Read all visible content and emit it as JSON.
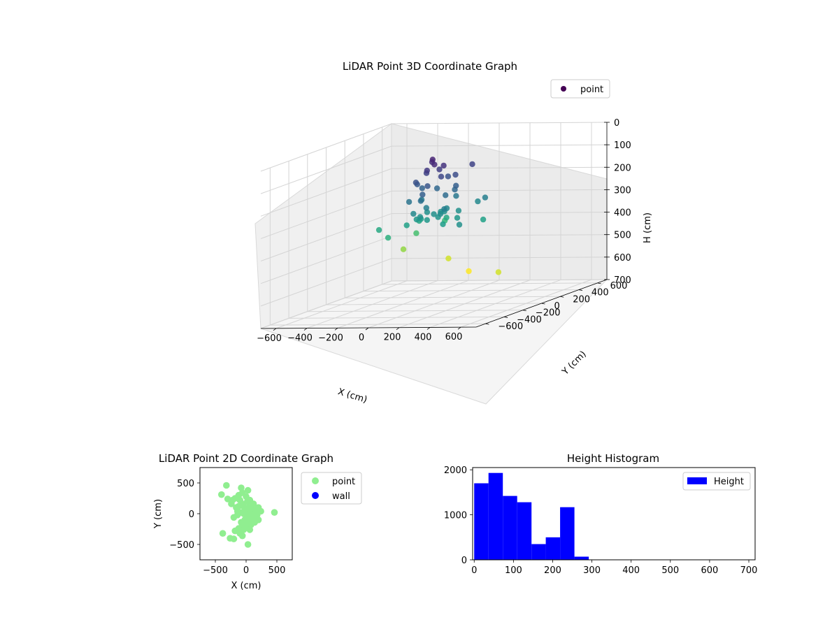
{
  "chart_data": [
    {
      "type": "scatter",
      "projection": "3d",
      "title": "LiDAR Point 3D Coordinate Graph",
      "xlabel": "X (cm)",
      "ylabel": "Y (cm)",
      "zlabel": "H (cm)",
      "xlim": [
        -700,
        700
      ],
      "ylim": [
        -700,
        700
      ],
      "zlim": [
        700,
        0
      ],
      "xticks": [
        -600,
        -400,
        -200,
        0,
        200,
        400,
        600
      ],
      "yticks": [
        -600,
        -400,
        -200,
        0,
        200,
        400,
        600
      ],
      "zticks": [
        0,
        100,
        200,
        300,
        400,
        500,
        600,
        700
      ],
      "grid": true,
      "legend": {
        "placement": "upper-right",
        "entries": [
          {
            "label": "point",
            "color": "#440154"
          }
        ]
      },
      "colormap": "viridis",
      "series": [
        {
          "name": "point",
          "points": [
            [
              -60,
              -120,
              280
            ],
            [
              -40,
              -80,
              300
            ],
            [
              -20,
              -40,
              320
            ],
            [
              0,
              0,
              300
            ],
            [
              40,
              -20,
              310
            ],
            [
              80,
              -60,
              290
            ],
            [
              -80,
              60,
              300
            ],
            [
              20,
              80,
              300
            ],
            [
              60,
              40,
              280
            ],
            [
              -100,
              -20,
              320
            ],
            [
              -120,
              60,
              330
            ],
            [
              100,
              100,
              300
            ],
            [
              140,
              20,
              320
            ],
            [
              -40,
              140,
              310
            ],
            [
              -140,
              -60,
              340
            ],
            [
              120,
              -100,
              330
            ],
            [
              -60,
              20,
              120
            ],
            [
              0,
              60,
              110
            ],
            [
              60,
              -20,
              130
            ],
            [
              -20,
              -40,
              100
            ],
            [
              40,
              40,
              90
            ],
            [
              -80,
              -60,
              150
            ],
            [
              80,
              100,
              140
            ],
            [
              20,
              -100,
              160
            ],
            [
              -120,
              20,
              170
            ],
            [
              120,
              40,
              180
            ],
            [
              -40,
              100,
              200
            ],
            [
              100,
              -40,
              210
            ],
            [
              -100,
              -100,
              230
            ],
            [
              0,
              -140,
              220
            ],
            [
              60,
              140,
              240
            ],
            [
              -140,
              100,
              250
            ],
            [
              140,
              -120,
              260
            ],
            [
              -20,
              20,
              60
            ],
            [
              40,
              -60,
              70
            ],
            [
              -60,
              80,
              80
            ],
            [
              20,
              120,
              150
            ],
            [
              -100,
              40,
              190
            ],
            [
              100,
              60,
              200
            ],
            [
              0,
              -80,
              260
            ],
            [
              -320,
              -60,
              360
            ],
            [
              -260,
              240,
              420
            ],
            [
              -380,
              300,
              500
            ],
            [
              -160,
              420,
              560
            ],
            [
              -40,
              440,
              620
            ],
            [
              -220,
              480,
              400
            ],
            [
              -100,
              300,
              360
            ],
            [
              360,
              -320,
              300
            ],
            [
              420,
              0,
              560
            ],
            [
              80,
              280,
              120
            ],
            [
              140,
              240,
              280
            ],
            [
              -200,
              -160,
              380
            ],
            [
              200,
              220,
              260
            ],
            [
              60,
              -220,
              180
            ],
            [
              -180,
              140,
              350
            ],
            [
              260,
              100,
              340
            ]
          ]
        }
      ]
    },
    {
      "type": "scatter",
      "title": "LiDAR Point 2D Coordinate Graph",
      "xlabel": "X (cm)",
      "ylabel": "Y (cm)",
      "xlim": [
        -750,
        750
      ],
      "ylim": [
        -750,
        750
      ],
      "xticks": [
        -500,
        0,
        500
      ],
      "yticks": [
        -500,
        0,
        500
      ],
      "grid": false,
      "legend": {
        "placement": "outside-right"
      },
      "series": [
        {
          "name": "point",
          "color": "#90ee90",
          "points": [
            [
              -320,
              460
            ],
            [
              -80,
              420
            ],
            [
              30,
              380
            ],
            [
              -400,
              310
            ],
            [
              -300,
              240
            ],
            [
              -180,
              250
            ],
            [
              -120,
              300
            ],
            [
              -60,
              340
            ],
            [
              0,
              280
            ],
            [
              60,
              220
            ],
            [
              120,
              160
            ],
            [
              200,
              100
            ],
            [
              240,
              40
            ],
            [
              180,
              -20
            ],
            [
              120,
              -80
            ],
            [
              60,
              -120
            ],
            [
              0,
              -160
            ],
            [
              -60,
              -200
            ],
            [
              -120,
              -240
            ],
            [
              -180,
              -280
            ],
            [
              -100,
              -320
            ],
            [
              -40,
              -260
            ],
            [
              20,
              -220
            ],
            [
              80,
              -180
            ],
            [
              140,
              -140
            ],
            [
              200,
              -100
            ],
            [
              -200,
              -60
            ],
            [
              -140,
              -20
            ],
            [
              -80,
              20
            ],
            [
              -20,
              60
            ],
            [
              40,
              100
            ],
            [
              100,
              140
            ],
            [
              -240,
              160
            ],
            [
              -160,
              100
            ],
            [
              -60,
              160
            ],
            [
              20,
              200
            ],
            [
              -100,
              220
            ],
            [
              160,
              60
            ],
            [
              100,
              -20
            ],
            [
              40,
              -60
            ],
            [
              -20,
              -100
            ],
            [
              -80,
              -140
            ],
            [
              -140,
              40
            ],
            [
              -40,
              0
            ],
            [
              0,
              -40
            ],
            [
              60,
              0
            ],
            [
              120,
              40
            ],
            [
              -220,
              220
            ],
            [
              460,
              20
            ],
            [
              30,
              -500
            ],
            [
              -380,
              -320
            ],
            [
              -260,
              -400
            ],
            [
              -200,
              -410
            ],
            [
              -60,
              -360
            ],
            [
              -120,
              120
            ],
            [
              80,
              60
            ],
            [
              160,
              -40
            ],
            [
              -40,
              120
            ],
            [
              60,
              -260
            ],
            [
              140,
              0
            ]
          ]
        },
        {
          "name": "wall",
          "color": "#0000ff",
          "points": []
        }
      ]
    },
    {
      "type": "histogram",
      "title": "Height Histogram",
      "xlabel": "",
      "ylabel": "",
      "xlim": [
        -4,
        716
      ],
      "ylim": [
        0,
        2050
      ],
      "xticks": [
        0,
        100,
        200,
        300,
        400,
        500,
        600,
        700
      ],
      "yticks": [
        0,
        1000,
        2000
      ],
      "grid": false,
      "legend": {
        "placement": "upper-right",
        "entries": [
          {
            "label": "Height",
            "color": "#0000ff"
          }
        ]
      },
      "color": "#0000ff",
      "bin_edges": [
        0,
        36.5,
        73,
        109.5,
        146,
        182.5,
        219,
        255.5,
        292,
        328.5,
        365,
        401.5,
        438,
        474.5,
        511,
        547.5,
        584,
        620.5,
        657,
        693.5,
        730
      ],
      "counts": [
        1700,
        1930,
        1420,
        1280,
        350,
        500,
        1170,
        70,
        0,
        0,
        0,
        0,
        0,
        0,
        0,
        0,
        0,
        0,
        0,
        0
      ],
      "series_name": "Height"
    }
  ]
}
